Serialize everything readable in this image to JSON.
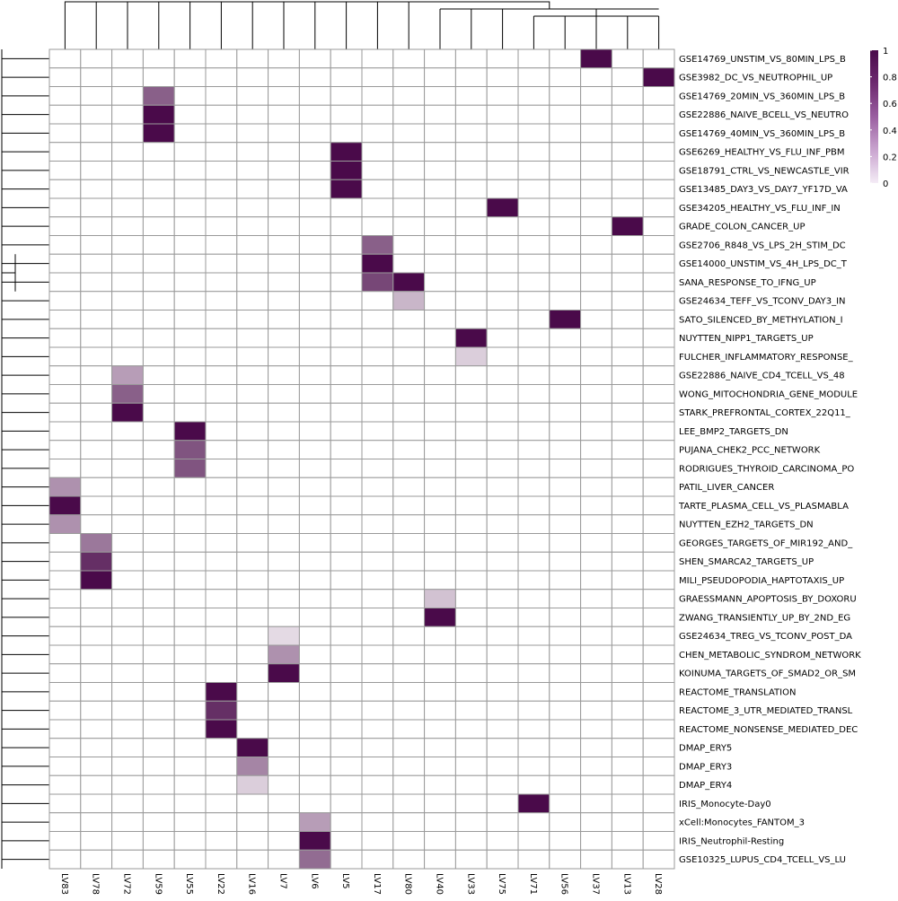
{
  "chart_data": {
    "type": "heatmap",
    "columns": [
      "LV83",
      "LV78",
      "LV72",
      "LV59",
      "LV55",
      "LV22",
      "LV16",
      "LV7",
      "LV6",
      "LV5",
      "LV17",
      "LV80",
      "LV40",
      "LV33",
      "LV75",
      "LV71",
      "LV56",
      "LV37",
      "LV13",
      "LV28"
    ],
    "rows": [
      "GSE14769_UNSTIM_VS_80MIN_LPS_B",
      "GSE3982_DC_VS_NEUTROPHIL_UP",
      "GSE14769_20MIN_VS_360MIN_LPS_B",
      "GSE22886_NAIVE_BCELL_VS_NEUTRO",
      "GSE14769_40MIN_VS_360MIN_LPS_B",
      "GSE6269_HEALTHY_VS_FLU_INF_PBM",
      "GSE18791_CTRL_VS_NEWCASTLE_VIR",
      "GSE13485_DAY3_VS_DAY7_YF17D_VA",
      "GSE34205_HEALTHY_VS_FLU_INF_IN",
      "GRADE_COLON_CANCER_UP",
      "GSE2706_R848_VS_LPS_2H_STIM_DC",
      "GSE14000_UNSTIM_VS_4H_LPS_DC_T",
      "SANA_RESPONSE_TO_IFNG_UP",
      "GSE24634_TEFF_VS_TCONV_DAY3_IN",
      "SATO_SILENCED_BY_METHYLATION_I",
      "NUYTTEN_NIPP1_TARGETS_UP",
      "FULCHER_INFLAMMATORY_RESPONSE_",
      "GSE22886_NAIVE_CD4_TCELL_VS_48",
      "WONG_MITOCHONDRIA_GENE_MODULE",
      "STARK_PREFRONTAL_CORTEX_22Q11_",
      "LEE_BMP2_TARGETS_DN",
      "PUJANA_CHEK2_PCC_NETWORK",
      "RODRIGUES_THYROID_CARCINOMA_PO",
      "PATIL_LIVER_CANCER",
      "TARTE_PLASMA_CELL_VS_PLASMABLA",
      "NUYTTEN_EZH2_TARGETS_DN",
      "GEORGES_TARGETS_OF_MIR192_AND_",
      "SHEN_SMARCA2_TARGETS_UP",
      "MILI_PSEUDOPODIA_HAPTOTAXIS_UP",
      "GRAESSMANN_APOPTOSIS_BY_DOXORU",
      "ZWANG_TRANSIENTLY_UP_BY_2ND_EG",
      "GSE24634_TREG_VS_TCONV_POST_DA",
      "CHEN_METABOLIC_SYNDROM_NETWORK",
      "KOINUMA_TARGETS_OF_SMAD2_OR_SM",
      "REACTOME_TRANSLATION",
      "REACTOME_3_UTR_MEDIATED_TRANSL",
      "REACTOME_NONSENSE_MEDIATED_DEC",
      "DMAP_ERY5",
      "DMAP_ERY3",
      "DMAP_ERY4",
      "IRIS_Monocyte-Day0",
      "xCell:Monocytes_FANTOM_3",
      "IRIS_Neutrophil-Resting",
      "GSE10325_LUPUS_CD4_TCELL_VS_LU"
    ],
    "cells": [
      {
        "row": 0,
        "col": "LV37",
        "value": 1.0
      },
      {
        "row": 1,
        "col": "LV28",
        "value": 1.0
      },
      {
        "row": 2,
        "col": "LV59",
        "value": 0.65
      },
      {
        "row": 3,
        "col": "LV59",
        "value": 1.0
      },
      {
        "row": 4,
        "col": "LV59",
        "value": 1.0
      },
      {
        "row": 5,
        "col": "LV5",
        "value": 1.0
      },
      {
        "row": 6,
        "col": "LV5",
        "value": 1.0
      },
      {
        "row": 7,
        "col": "LV5",
        "value": 1.0
      },
      {
        "row": 8,
        "col": "LV75",
        "value": 1.0
      },
      {
        "row": 9,
        "col": "LV13",
        "value": 1.0
      },
      {
        "row": 10,
        "col": "LV17",
        "value": 0.65
      },
      {
        "row": 11,
        "col": "LV17",
        "value": 1.0
      },
      {
        "row": 12,
        "col": "LV17",
        "value": 0.75
      },
      {
        "row": 12,
        "col": "LV80",
        "value": 1.0
      },
      {
        "row": 13,
        "col": "LV80",
        "value": 0.3
      },
      {
        "row": 14,
        "col": "LV56",
        "value": 1.0
      },
      {
        "row": 15,
        "col": "LV33",
        "value": 1.0
      },
      {
        "row": 16,
        "col": "LV33",
        "value": 0.2
      },
      {
        "row": 17,
        "col": "LV72",
        "value": 0.4
      },
      {
        "row": 18,
        "col": "LV72",
        "value": 0.65
      },
      {
        "row": 19,
        "col": "LV72",
        "value": 1.0
      },
      {
        "row": 20,
        "col": "LV55",
        "value": 1.0
      },
      {
        "row": 21,
        "col": "LV55",
        "value": 0.7
      },
      {
        "row": 22,
        "col": "LV55",
        "value": 0.7
      },
      {
        "row": 23,
        "col": "LV83",
        "value": 0.45
      },
      {
        "row": 24,
        "col": "LV83",
        "value": 1.0
      },
      {
        "row": 25,
        "col": "LV83",
        "value": 0.45
      },
      {
        "row": 26,
        "col": "LV78",
        "value": 0.55
      },
      {
        "row": 27,
        "col": "LV78",
        "value": 0.85
      },
      {
        "row": 28,
        "col": "LV78",
        "value": 1.0
      },
      {
        "row": 29,
        "col": "LV40",
        "value": 0.25
      },
      {
        "row": 30,
        "col": "LV40",
        "value": 1.0
      },
      {
        "row": 31,
        "col": "LV7",
        "value": 0.15
      },
      {
        "row": 32,
        "col": "LV7",
        "value": 0.45
      },
      {
        "row": 33,
        "col": "LV7",
        "value": 1.0
      },
      {
        "row": 34,
        "col": "LV22",
        "value": 1.0
      },
      {
        "row": 35,
        "col": "LV22",
        "value": 0.85
      },
      {
        "row": 36,
        "col": "LV22",
        "value": 1.0
      },
      {
        "row": 37,
        "col": "LV16",
        "value": 1.0
      },
      {
        "row": 38,
        "col": "LV16",
        "value": 0.5
      },
      {
        "row": 39,
        "col": "LV16",
        "value": 0.2
      },
      {
        "row": 40,
        "col": "LV71",
        "value": 1.0
      },
      {
        "row": 41,
        "col": "LV6",
        "value": 0.4
      },
      {
        "row": 42,
        "col": "LV6",
        "value": 1.0
      },
      {
        "row": 43,
        "col": "LV6",
        "value": 0.6
      }
    ],
    "color_scale": {
      "min": 0,
      "max": 1,
      "low_color": "#ffffff",
      "high_color": "#4a0a4a",
      "ticks": [
        "1",
        "0.8",
        "0.6",
        "0.4",
        "0.2",
        "0"
      ]
    },
    "row_dendrogram": true,
    "column_dendrogram": true,
    "legend": "top-right"
  }
}
